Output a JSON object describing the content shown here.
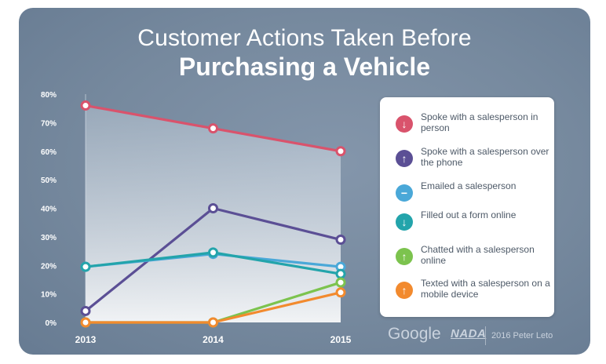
{
  "title_line1": "Customer Actions Taken Before",
  "title_line2": "Purchasing a Vehicle",
  "chart_data": {
    "type": "line",
    "x": [
      "2013",
      "2014",
      "2015"
    ],
    "ylim": [
      0,
      80
    ],
    "yticks": [
      "0%",
      "10%",
      "20%",
      "30%",
      "40%",
      "50%",
      "60%",
      "70%",
      "80%"
    ],
    "y_tick_values": [
      0,
      10,
      20,
      30,
      40,
      50,
      60,
      70,
      80
    ],
    "grid": false,
    "legend_placement": "right",
    "series": [
      {
        "name": "Spoke with a salesperson in person",
        "values": [
          76,
          68,
          60
        ],
        "color": "#d9536c",
        "icon": "arrow-down-icon"
      },
      {
        "name": "Spoke with a salesperson over the phone",
        "values": [
          4,
          40,
          29
        ],
        "color": "#5b4f95",
        "icon": "arrow-up-icon"
      },
      {
        "name": "Emailed a salesperson",
        "values": [
          19.5,
          24,
          19.5
        ],
        "color": "#4aa8d8",
        "icon": "minus-icon"
      },
      {
        "name": "Filled out a form online",
        "values": [
          19.5,
          24.5,
          17
        ],
        "color": "#23a4ab",
        "icon": "arrow-down-icon"
      },
      {
        "name": "Chatted with a salesperson online",
        "values": [
          0,
          0,
          14
        ],
        "color": "#7cc34e",
        "icon": "arrow-up-icon"
      },
      {
        "name": "Texted with a salesperson on a mobile device",
        "values": [
          0,
          0,
          10.5
        ],
        "color": "#f28a2e",
        "icon": "arrow-up-icon"
      }
    ]
  },
  "legend": [
    {
      "label": "Spoke with a salesperson in person",
      "color": "#d9536c",
      "glyph": "↓"
    },
    {
      "label": "Spoke with a salesperson over the phone",
      "color": "#5b4f95",
      "glyph": "↑"
    },
    {
      "label": "Emailed a salesperson",
      "color": "#4aa8d8",
      "glyph": "−"
    },
    {
      "label": "Filled out a form online",
      "color": "#23a4ab",
      "glyph": "↓"
    },
    {
      "label": "Chatted with a salesperson online",
      "color": "#7cc34e",
      "glyph": "↑"
    },
    {
      "label": "Texted with a salesperson on a mobile device",
      "color": "#f28a2e",
      "glyph": "↑"
    }
  ],
  "footer": {
    "google": "Google",
    "nada": "NADA",
    "credit": "2016 Peter Leto"
  }
}
